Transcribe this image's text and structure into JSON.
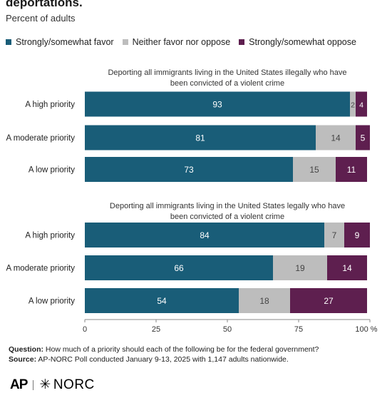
{
  "title": "deportations.",
  "subtitle": "Percent of adults",
  "colors": {
    "favor": "#195d78",
    "neither": "#bdbdbd",
    "oppose": "#5e1f4f",
    "axis": "#888888",
    "grid": "#d9d9d9"
  },
  "chart_data": {
    "type": "bar",
    "orientation": "horizontal",
    "stacked": true,
    "legend_position": "top",
    "xlim": [
      0,
      100
    ],
    "x_ticks": [
      "0",
      "25",
      "50",
      "75",
      "100 %"
    ],
    "legend": [
      "Strongly/somewhat favor",
      "Neither favor nor oppose",
      "Strongly/somewhat oppose"
    ],
    "panels": [
      {
        "title": "Deporting all immigrants living in the United States illegally who have been convicted of a violent crime",
        "title_lines": [
          "Deporting all immigrants living in the United States illegally who have",
          "been convicted of a violent crime"
        ],
        "categories": [
          "A high priority",
          "A moderate priority",
          "A low priority"
        ],
        "series": [
          {
            "name": "Strongly/somewhat favor",
            "values": [
              93,
              81,
              73
            ]
          },
          {
            "name": "Neither favor nor oppose",
            "values": [
              2,
              14,
              15
            ]
          },
          {
            "name": "Strongly/somewhat oppose",
            "values": [
              4,
              5,
              11
            ]
          }
        ]
      },
      {
        "title": "Deporting all immigrants living in the United States legally who have been convicted of a violent crime",
        "title_lines": [
          "Deporting all immigrants living in the United States legally who have",
          "been convicted of a violent crime"
        ],
        "categories": [
          "A high priority",
          "A moderate priority",
          "A low priority"
        ],
        "series": [
          {
            "name": "Strongly/somewhat favor",
            "values": [
              84,
              66,
              54
            ]
          },
          {
            "name": "Neither favor nor oppose",
            "values": [
              7,
              19,
              18
            ]
          },
          {
            "name": "Strongly/somewhat oppose",
            "values": [
              9,
              14,
              27
            ]
          }
        ]
      }
    ]
  },
  "notes": {
    "question_label": "Question:",
    "question_text": " How much of a priority should each of the following be for the federal government?",
    "source_label": "Source:",
    "source_text": " AP-NORC Poll conducted January 9-13, 2025 with 1,147 adults nationwide."
  },
  "logos": {
    "ap": "AP",
    "norc_mark": "✳",
    "norc": "NORC"
  }
}
